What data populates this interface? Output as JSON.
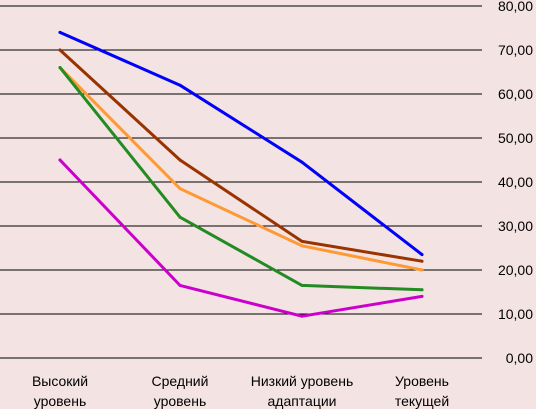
{
  "chart_data": {
    "type": "line",
    "categories": [
      [
        "Высокий",
        "уровень"
      ],
      [
        "Средний",
        "уровень"
      ],
      [
        "Низкий уровень",
        "адаптации"
      ],
      [
        "Уровень",
        "текущей"
      ]
    ],
    "ylim": [
      0,
      80
    ],
    "yticks": [
      "0,00",
      "10,00",
      "20,00",
      "30,00",
      "40,00",
      "50,00",
      "60,00",
      "70,00",
      "80,00"
    ],
    "grid": true,
    "series": [
      {
        "color": "#0000ff",
        "values": [
          74.0,
          62.0,
          44.5,
          23.5
        ]
      },
      {
        "color": "#993300",
        "values": [
          70.0,
          45.0,
          26.5,
          22.0
        ]
      },
      {
        "color": "#ff9933",
        "values": [
          66.0,
          38.5,
          25.5,
          20.0
        ]
      },
      {
        "color": "#228b22",
        "values": [
          66.0,
          32.0,
          16.5,
          15.5
        ]
      },
      {
        "color": "#cc00cc",
        "values": [
          45.0,
          16.5,
          9.5,
          14.0
        ]
      }
    ]
  }
}
